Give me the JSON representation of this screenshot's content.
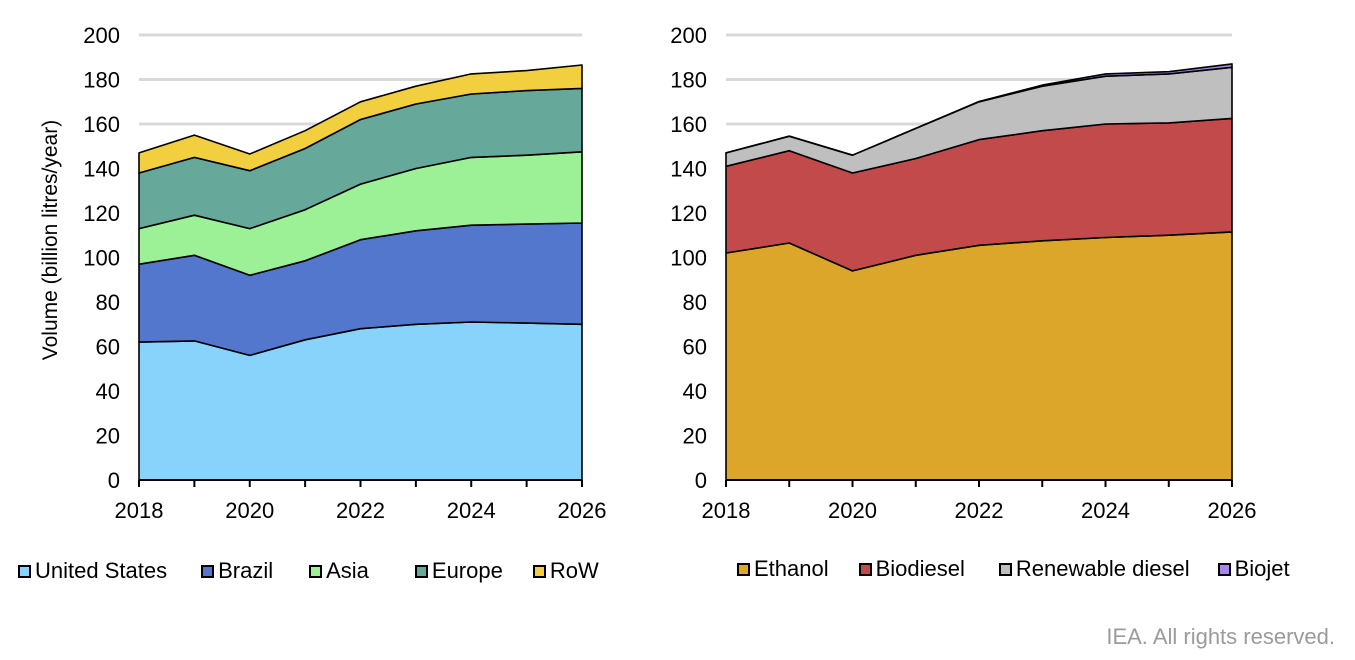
{
  "chart_data": [
    {
      "type": "area",
      "stacked": true,
      "title": "",
      "xlabel": "",
      "ylabel": "Volume (billion litres/year)",
      "ylim": [
        0,
        200
      ],
      "yticks": [
        "0",
        "20",
        "40",
        "60",
        "80",
        "100",
        "120",
        "140",
        "160",
        "180",
        "200"
      ],
      "xticks": [
        "2018",
        "2020",
        "2022",
        "2024",
        "2026"
      ],
      "x": [
        2018,
        2019,
        2020,
        2021,
        2022,
        2023,
        2024,
        2025,
        2026
      ],
      "grid": true,
      "legend_position": "bottom",
      "series": [
        {
          "name": "United States",
          "color": "#87d3fb",
          "values": [
            62,
            62.5,
            56,
            63,
            68,
            70,
            71,
            70.5,
            70
          ]
        },
        {
          "name": "Brazil",
          "color": "#5277cd",
          "values": [
            35,
            38.5,
            36,
            35.5,
            40,
            42,
            43.5,
            44.5,
            45.5
          ]
        },
        {
          "name": "Asia",
          "color": "#9cf096",
          "values": [
            16,
            18,
            21,
            23,
            25,
            28,
            30.5,
            31,
            32
          ]
        },
        {
          "name": "Europe",
          "color": "#66a99b",
          "values": [
            25,
            26,
            26,
            27.5,
            29,
            29,
            28.5,
            29,
            28.5
          ]
        },
        {
          "name": "RoW",
          "color": "#f2cf3e",
          "values": [
            9,
            10,
            7.5,
            8,
            8,
            8,
            9,
            9,
            10.5
          ]
        }
      ]
    },
    {
      "type": "area",
      "stacked": true,
      "title": "",
      "xlabel": "",
      "ylabel": "",
      "ylim": [
        0,
        200
      ],
      "yticks": [
        "0",
        "20",
        "40",
        "60",
        "80",
        "100",
        "120",
        "140",
        "160",
        "180",
        "200"
      ],
      "xticks": [
        "2018",
        "2020",
        "2022",
        "2024",
        "2026"
      ],
      "x": [
        2018,
        2019,
        2020,
        2021,
        2022,
        2023,
        2024,
        2025,
        2026
      ],
      "grid": true,
      "legend_position": "bottom",
      "series": [
        {
          "name": "Ethanol",
          "color": "#dca62a",
          "values": [
            102,
            106.5,
            94,
            101,
            105.5,
            107.5,
            109,
            110,
            111.5
          ]
        },
        {
          "name": "Biodiesel",
          "color": "#c34a4a",
          "values": [
            39,
            41.5,
            44,
            43.5,
            47.5,
            49.5,
            51,
            50.5,
            51
          ]
        },
        {
          "name": "Renewable diesel",
          "color": "#bfbfbf",
          "values": [
            6,
            6.5,
            8,
            13.5,
            17,
            20,
            21.5,
            22,
            23
          ]
        },
        {
          "name": "Biojet",
          "color": "#a487e6",
          "values": [
            0,
            0,
            0,
            0,
            0.1,
            0.5,
            1,
            1,
            1.5
          ]
        }
      ]
    }
  ],
  "footer": {
    "credit": "IEA. All rights reserved."
  }
}
